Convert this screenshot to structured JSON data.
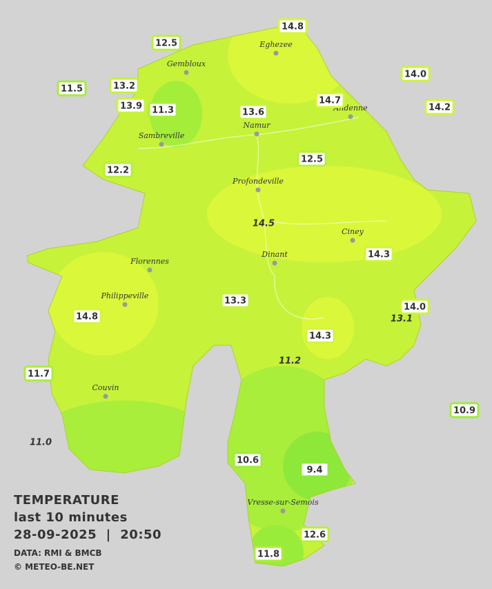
{
  "map": {
    "stations": [
      {
        "text": "14.8",
        "color": "#d6f53a"
      },
      {
        "text": "12.5",
        "color": "#b8f03a"
      },
      {
        "text": "11.5",
        "color": "#a6ee3a"
      },
      {
        "text": "13.2",
        "color": "#c4f23a"
      },
      {
        "text": "13.9",
        "color": "#ccf33a"
      },
      {
        "text": "11.3",
        "color": "#a6ee3a"
      },
      {
        "text": "13.6",
        "color": "#c8f33a"
      },
      {
        "text": "14.7",
        "color": "#d6f53a"
      },
      {
        "text": "14.0",
        "color": "#cef43a"
      },
      {
        "text": "14.2",
        "color": "#d0f43a"
      },
      {
        "text": "12.5",
        "color": "#b8f03a"
      },
      {
        "text": "12.2",
        "color": "#b4f03a"
      },
      {
        "text": "14.5",
        "color": "#d4f53a",
        "italic": true
      },
      {
        "text": "14.3",
        "color": "#d2f43a"
      },
      {
        "text": "13.3",
        "color": "#c4f23a"
      },
      {
        "text": "14.0",
        "color": "#cef43a"
      },
      {
        "text": "13.1",
        "color": "#c4f23a",
        "italic": true
      },
      {
        "text": "14.8",
        "color": "#d6f53a"
      },
      {
        "text": "14.3",
        "color": "#d2f43a"
      },
      {
        "text": "11.2",
        "color": "#a6ee3a",
        "italic": true
      },
      {
        "text": "11.7",
        "color": "#aaee3a"
      },
      {
        "text": "10.9",
        "color": "#a0ec3a"
      },
      {
        "text": "11.0",
        "color": "#a0ec3a",
        "italic": true
      },
      {
        "text": "10.6",
        "color": "#9cec3a"
      },
      {
        "text": "9.4",
        "color": "#8ee83a"
      },
      {
        "text": "12.6",
        "color": "#b8f03a"
      },
      {
        "text": "11.8",
        "color": "#aaee3a"
      }
    ],
    "cities": [
      "Eghezee",
      "Gembloux",
      "Andenne",
      "Namur",
      "Sambreville",
      "Profondeville",
      "Ciney",
      "Dinant",
      "Florennes",
      "Philippeville",
      "Couvin",
      "Vresse-sur-Semois"
    ],
    "legend": {
      "title": "TEMPERATURE",
      "period": "last 10 minutes",
      "datetime": "28-09-2025  |  20:50",
      "source": "DATA: RMI & BMCB",
      "copyright": "© METEO-BE.NET"
    }
  }
}
